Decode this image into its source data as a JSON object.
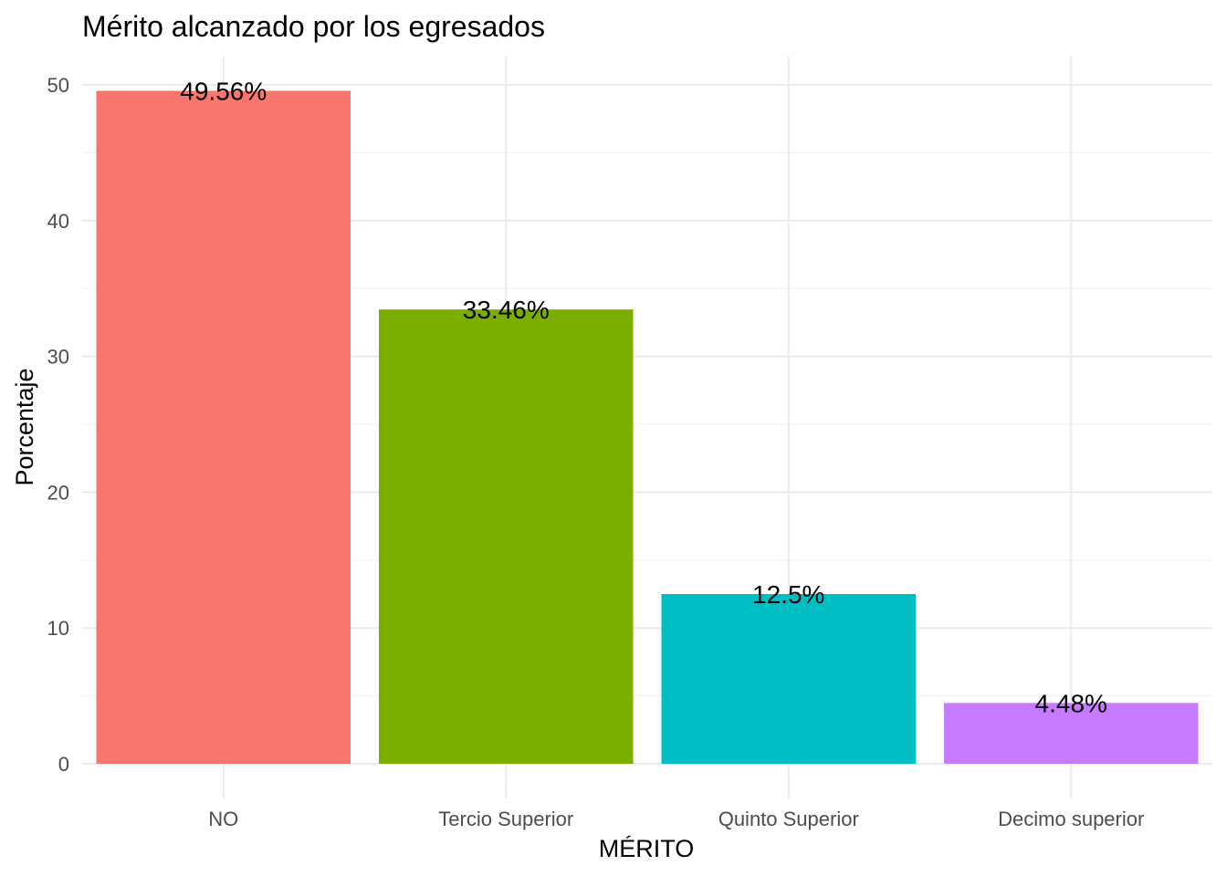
{
  "chart_data": {
    "type": "bar",
    "title": "Mérito alcanzado por los egresados",
    "xlabel": "MÉRITO",
    "ylabel": "Porcentaje",
    "categories": [
      "NO",
      "Tercio Superior",
      "Quinto Superior",
      "Decimo superior"
    ],
    "values": [
      49.56,
      33.46,
      12.5,
      4.48
    ],
    "data_labels": [
      "49.56%",
      "33.46%",
      "12.5%",
      "4.48%"
    ],
    "colors": [
      "#F8766D",
      "#7CAE00",
      "#00BFC4",
      "#C77CFF"
    ],
    "ylim": [
      0,
      52
    ],
    "yticks": [
      0,
      10,
      20,
      30,
      40,
      50
    ],
    "grid": true,
    "legend": "none"
  }
}
